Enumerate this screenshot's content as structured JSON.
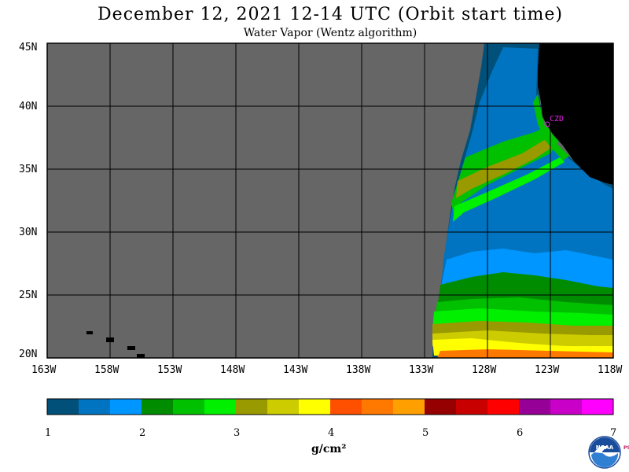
{
  "title": "December 12, 2021  12-14 UTC  (Orbit start time)",
  "subtitle": "Water Vapor (Wentz algorithm)",
  "map": {
    "lat_labels": [
      "45N",
      "40N",
      "35N",
      "30N",
      "25N",
      "20N"
    ],
    "lon_labels": [
      "163W",
      "158W",
      "153W",
      "148W",
      "143W",
      "138W",
      "133W",
      "128W",
      "123W",
      "118W"
    ],
    "city_label": "CZD",
    "colors": {
      "no_data": "#666666",
      "land": "#000000",
      "grid": "#000000",
      "city": "#e020e0"
    }
  },
  "colorbar": {
    "tick_labels": [
      "1",
      "2",
      "3",
      "4",
      "5",
      "6",
      "7"
    ],
    "unit": "g/cm²",
    "colors": [
      "#00507a",
      "#0074c0",
      "#0096ff",
      "#008c00",
      "#00c000",
      "#00f000",
      "#999900",
      "#cccc00",
      "#ffff00",
      "#ff5000",
      "#ff7800",
      "#ffa000",
      "#960000",
      "#c80000",
      "#ff0000",
      "#960096",
      "#c800c8",
      "#ff00ff"
    ]
  },
  "logo": {
    "name": "NOAA",
    "side_text": "PSL"
  }
}
